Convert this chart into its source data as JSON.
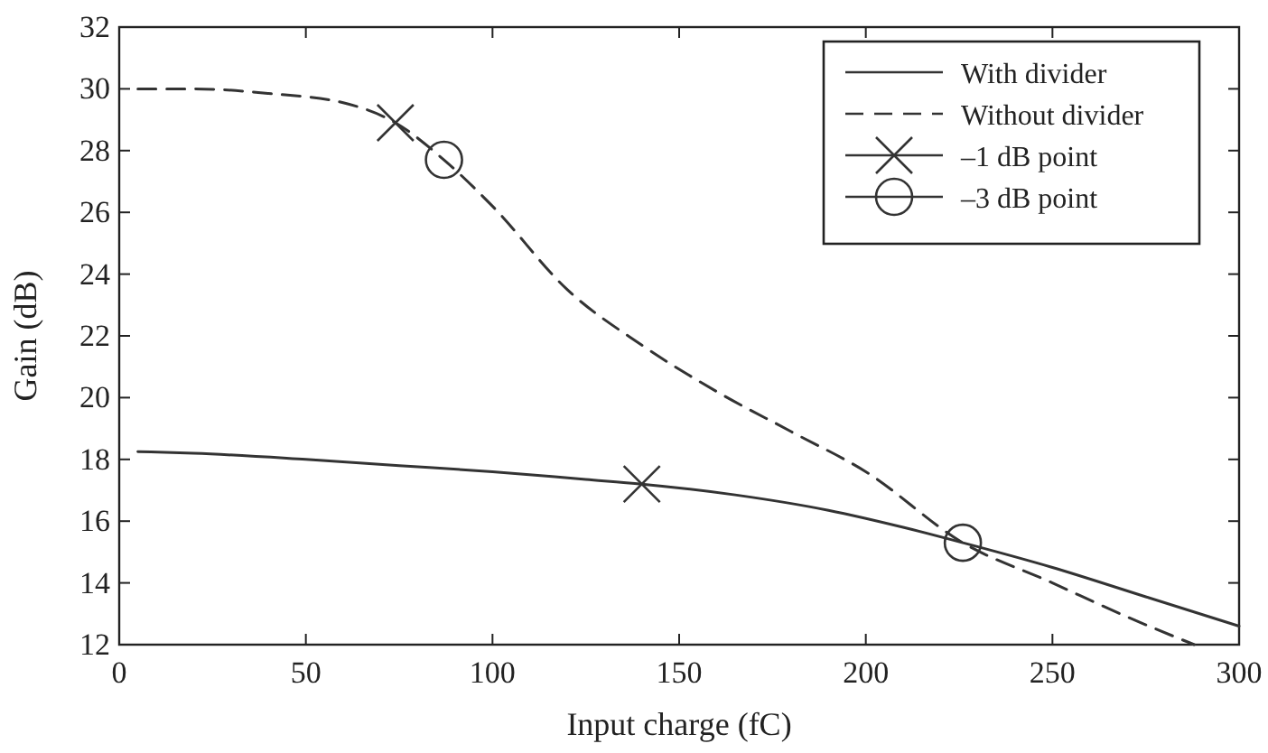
{
  "chart_data": {
    "type": "line",
    "xlabel": "Input charge (fC)",
    "ylabel": "Gain (dB)",
    "xlim": [
      0,
      300
    ],
    "xticks": [
      0,
      50,
      100,
      150,
      200,
      250,
      300
    ],
    "ylim": [
      12,
      32
    ],
    "yticks": [
      12,
      14,
      16,
      18,
      20,
      22,
      24,
      26,
      28,
      30,
      32
    ],
    "grid": false,
    "legend": "top right",
    "series": [
      {
        "name": "With divider",
        "color": "#333333",
        "line_style": "solid",
        "marker": "none",
        "x": [
          5,
          20,
          50,
          75,
          100,
          125,
          140,
          165,
          190,
          210,
          226,
          250,
          275,
          300
        ],
        "values": [
          18.25,
          18.2,
          18.0,
          17.8,
          17.6,
          17.35,
          17.2,
          16.85,
          16.35,
          15.8,
          15.3,
          14.5,
          13.55,
          12.6
        ]
      },
      {
        "name": "Without divider",
        "color": "#333333",
        "line_style": "dashed",
        "marker": "none",
        "x": [
          5,
          20,
          40,
          60,
          74,
          87,
          100,
          120,
          140,
          160,
          180,
          200,
          226,
          250,
          270,
          288
        ],
        "values": [
          30.0,
          30.0,
          29.85,
          29.55,
          28.9,
          27.7,
          26.2,
          23.5,
          21.7,
          20.2,
          18.9,
          17.6,
          15.3,
          14.0,
          12.9,
          12.0
        ]
      },
      {
        "name": "–1 dB point",
        "type": "scatter",
        "color": "#333333",
        "marker": "cross",
        "x": [
          74,
          140
        ],
        "values": [
          28.9,
          17.2
        ]
      },
      {
        "name": "–3 dB point",
        "type": "scatter",
        "color": "#333333",
        "marker": "circle",
        "x": [
          87,
          226
        ],
        "values": [
          27.7,
          15.3
        ]
      }
    ]
  }
}
